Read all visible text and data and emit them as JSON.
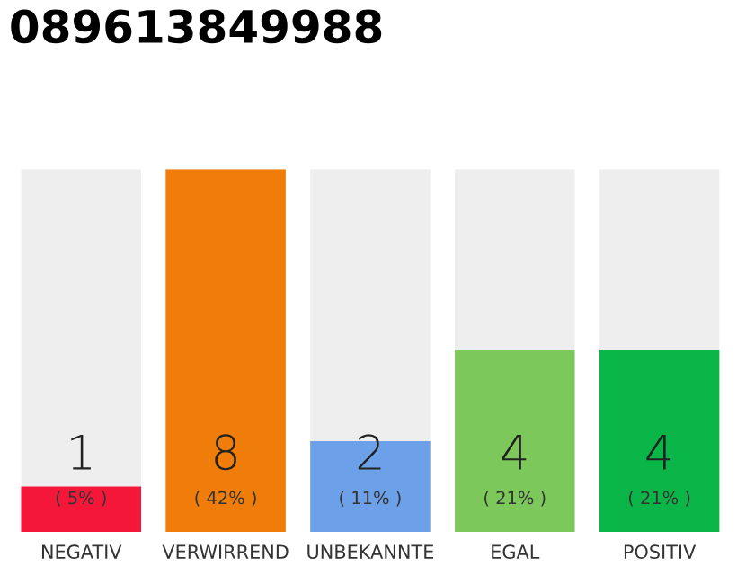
{
  "chart_data": {
    "type": "bar",
    "title": "089613849988",
    "categories": [
      "NEGATIV",
      "VERWIRREND",
      "UNBEKANNTE",
      "EGAL",
      "POSITIV"
    ],
    "values": [
      1,
      8,
      2,
      4,
      4
    ],
    "colors": [
      "#f5173a",
      "#f07d0a",
      "#6ca0e8",
      "#7dc85a",
      "#0bb648"
    ],
    "data_labels": true,
    "annotations": [
      "( 5% )",
      "( 42% )",
      "( 11% )",
      "( 21% )",
      "( 21% )"
    ],
    "grid": false,
    "legend": false
  }
}
